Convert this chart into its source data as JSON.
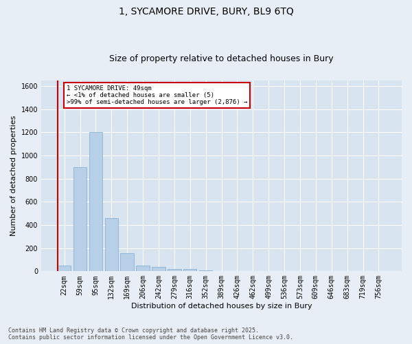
{
  "title_line1": "1, SYCAMORE DRIVE, BURY, BL9 6TQ",
  "title_line2": "Size of property relative to detached houses in Bury",
  "xlabel": "Distribution of detached houses by size in Bury",
  "ylabel": "Number of detached properties",
  "bar_color": "#b8cfe8",
  "bar_edge_color": "#7aaad0",
  "categories": [
    "22sqm",
    "59sqm",
    "95sqm",
    "132sqm",
    "169sqm",
    "206sqm",
    "242sqm",
    "279sqm",
    "316sqm",
    "352sqm",
    "389sqm",
    "426sqm",
    "462sqm",
    "499sqm",
    "536sqm",
    "573sqm",
    "609sqm",
    "646sqm",
    "683sqm",
    "719sqm",
    "756sqm"
  ],
  "values": [
    50,
    900,
    1200,
    460,
    155,
    50,
    40,
    20,
    20,
    5,
    0,
    0,
    0,
    0,
    0,
    0,
    0,
    0,
    0,
    0,
    0
  ],
  "ylim": [
    0,
    1650
  ],
  "yticks": [
    0,
    200,
    400,
    600,
    800,
    1000,
    1200,
    1400,
    1600
  ],
  "property_bar_index": 0,
  "property_line_color": "#cc0000",
  "annotation_text": "1 SYCAMORE DRIVE: 49sqm\n← <1% of detached houses are smaller (5)\n>99% of semi-detached houses are larger (2,876) →",
  "annotation_box_color": "#ffffff",
  "annotation_box_edge_color": "#cc0000",
  "background_color": "#e8eef5",
  "plot_bg_color": "#d8e4f0",
  "footer_text": "Contains HM Land Registry data © Crown copyright and database right 2025.\nContains public sector information licensed under the Open Government Licence v3.0.",
  "grid_color": "#ffffff",
  "title_fontsize": 10,
  "subtitle_fontsize": 9,
  "axis_label_fontsize": 8,
  "tick_fontsize": 7,
  "footer_fontsize": 6
}
